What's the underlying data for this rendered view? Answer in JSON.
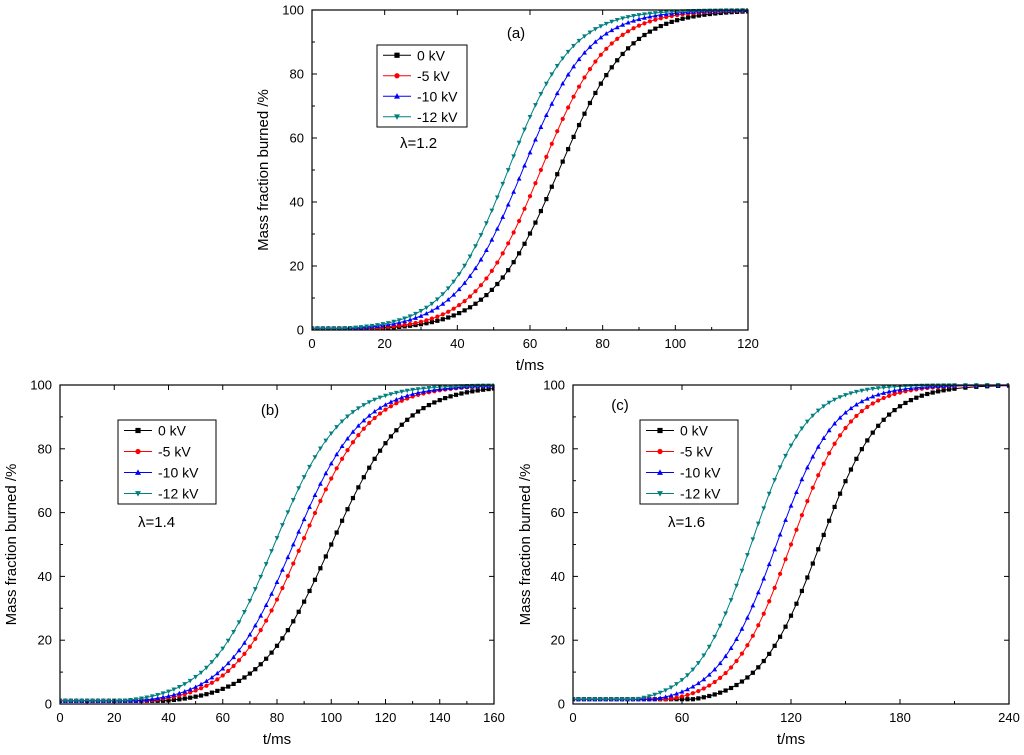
{
  "chart_data": [
    {
      "id": "a",
      "type": "line",
      "panel_label": "(a)",
      "annotation": "λ=1.2",
      "xlabel": "t/ms",
      "ylabel": "Mass fraction burned /%",
      "xlim": [
        0,
        120
      ],
      "ylim": [
        0,
        100
      ],
      "xticks": [
        0,
        20,
        40,
        60,
        80,
        100,
        120
      ],
      "yticks": [
        0,
        20,
        40,
        60,
        80,
        100
      ],
      "x_step": 1.5,
      "series": [
        {
          "name": "0 kV",
          "color": "#000000",
          "marker": "square",
          "x50": 68,
          "k": 0.105,
          "y0": 0.5,
          "x_end": 120
        },
        {
          "name": "-5 kV",
          "color": "#ff0000",
          "marker": "circle",
          "x50": 63,
          "k": 0.11,
          "y0": 0.5,
          "x_end": 120
        },
        {
          "name": "-10 kV",
          "color": "#0000ff",
          "marker": "tri-up",
          "x50": 58,
          "k": 0.11,
          "y0": 0.5,
          "x_end": 120
        },
        {
          "name": "-12 kV",
          "color": "#008080",
          "marker": "tri-down",
          "x50": 54,
          "k": 0.115,
          "y0": 0.5,
          "x_end": 120
        }
      ]
    },
    {
      "id": "b",
      "type": "line",
      "panel_label": "(b)",
      "annotation": "λ=1.4",
      "xlabel": "t/ms",
      "ylabel": "Mass fraction burned /%",
      "xlim": [
        0,
        160
      ],
      "ylim": [
        0,
        100
      ],
      "xticks": [
        0,
        20,
        40,
        60,
        80,
        100,
        120,
        140,
        160
      ],
      "yticks": [
        0,
        20,
        40,
        60,
        80,
        100
      ],
      "x_step": 2,
      "series": [
        {
          "name": "0 kV",
          "color": "#000000",
          "marker": "square",
          "x50": 100,
          "k": 0.075,
          "y0": 1,
          "x_end": 160
        },
        {
          "name": "-5 kV",
          "color": "#ff0000",
          "marker": "circle",
          "x50": 89,
          "k": 0.08,
          "y0": 1,
          "x_end": 160
        },
        {
          "name": "-10 kV",
          "color": "#0000ff",
          "marker": "tri-up",
          "x50": 86,
          "k": 0.08,
          "y0": 1,
          "x_end": 160
        },
        {
          "name": "-12 kV",
          "color": "#008080",
          "marker": "tri-down",
          "x50": 79,
          "k": 0.082,
          "y0": 1,
          "x_end": 160
        }
      ]
    },
    {
      "id": "c",
      "type": "line",
      "panel_label": "(c)",
      "annotation": "λ=1.6",
      "xlabel": "t/ms",
      "ylabel": "Mass fraction burned /%",
      "xlim": [
        0,
        240
      ],
      "ylim": [
        0,
        100
      ],
      "xticks": [
        0,
        60,
        120,
        180,
        240
      ],
      "yticks": [
        0,
        20,
        40,
        60,
        80,
        100
      ],
      "x_step": 3,
      "series": [
        {
          "name": "0 kV",
          "color": "#000000",
          "marker": "square",
          "x50": 136,
          "k": 0.06,
          "y0": 1.5,
          "x_end": 210
        },
        {
          "name": "-5 kV",
          "color": "#ff0000",
          "marker": "circle",
          "x50": 120,
          "k": 0.062,
          "y0": 1.5,
          "x_end": 210
        },
        {
          "name": "-10 kV",
          "color": "#0000ff",
          "marker": "tri-up",
          "x50": 112,
          "k": 0.062,
          "y0": 1.5,
          "x_end": 210
        },
        {
          "name": "-12 kV",
          "color": "#008080",
          "marker": "tri-down",
          "x50": 98,
          "k": 0.066,
          "y0": 1.5,
          "x_end": 210
        }
      ]
    }
  ]
}
